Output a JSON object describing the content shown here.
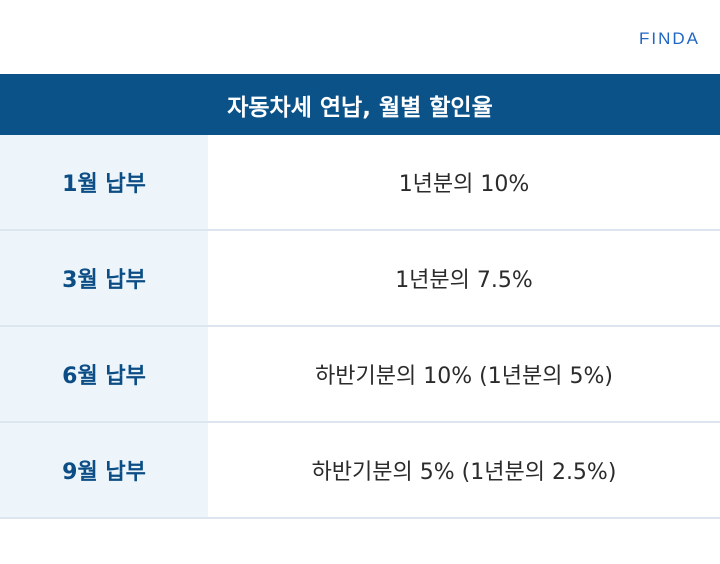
{
  "brand": {
    "logo_text": "FINDA"
  },
  "header": {
    "title": "자동차세 연납, 월별 할인율"
  },
  "table": {
    "rows": [
      {
        "label": "1월 납부",
        "value": "1년분의 10%"
      },
      {
        "label": "3월 납부",
        "value": "1년분의 7.5%"
      },
      {
        "label": "6월 납부",
        "value": "하반기분의 10% (1년분의 5%)"
      },
      {
        "label": "9월 납부",
        "value": "하반기분의 5% (1년분의 2.5%)"
      }
    ]
  },
  "colors": {
    "header_bg": "#0b5289",
    "label_bg": "#edf5fb",
    "label_text": "#0b4d84",
    "logo": "#1f66c5"
  }
}
